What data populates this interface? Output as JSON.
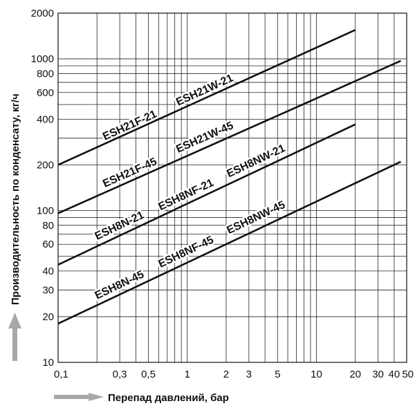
{
  "chart_data": {
    "type": "line",
    "title": "",
    "xlabel": "Перепад давлений, бар",
    "ylabel": "Производительность по конденсату, кг/ч",
    "xscale": "log",
    "yscale": "log",
    "xlim": [
      0.1,
      50
    ],
    "ylim": [
      10,
      2000
    ],
    "grid": true,
    "legend": "none",
    "x_ticks": [
      {
        "value": 0.1,
        "label": "0,1"
      },
      {
        "value": 0.3,
        "label": "0,3"
      },
      {
        "value": 0.5,
        "label": "0,5"
      },
      {
        "value": 1,
        "label": "1"
      },
      {
        "value": 2,
        "label": "2"
      },
      {
        "value": 3,
        "label": "3"
      },
      {
        "value": 5,
        "label": "5"
      },
      {
        "value": 10,
        "label": "10"
      },
      {
        "value": 20,
        "label": "20"
      },
      {
        "value": 30,
        "label": "30"
      },
      {
        "value": 40,
        "label": "40"
      },
      {
        "value": 50,
        "label": "50"
      }
    ],
    "y_ticks": [
      {
        "value": 10,
        "label": "10"
      },
      {
        "value": 20,
        "label": "20"
      },
      {
        "value": 30,
        "label": "30"
      },
      {
        "value": 40,
        "label": "40"
      },
      {
        "value": 60,
        "label": "60"
      },
      {
        "value": 80,
        "label": "80"
      },
      {
        "value": 100,
        "label": "100"
      },
      {
        "value": 200,
        "label": "200"
      },
      {
        "value": 400,
        "label": "400"
      },
      {
        "value": 600,
        "label": "600"
      },
      {
        "value": 800,
        "label": "800"
      },
      {
        "value": 1000,
        "label": "1000"
      },
      {
        "value": 2000,
        "label": "2000"
      }
    ],
    "x_grid": [
      0.1,
      0.2,
      0.3,
      0.4,
      0.5,
      0.6,
      0.7,
      0.8,
      0.9,
      1,
      2,
      3,
      4,
      5,
      6,
      7,
      8,
      9,
      10,
      20,
      30,
      40,
      50
    ],
    "y_grid": [
      10,
      20,
      30,
      40,
      50,
      60,
      70,
      80,
      90,
      100,
      200,
      300,
      400,
      500,
      600,
      700,
      800,
      900,
      1000,
      2000
    ],
    "series": [
      {
        "x": [
          0.1,
          20
        ],
        "y": [
          200,
          1550
        ],
        "labels": [
          {
            "text": "ESH21F-21",
            "x": 0.23,
            "y": 290
          },
          {
            "text": "ESH21W-21",
            "x": 0.85,
            "y": 490
          }
        ]
      },
      {
        "x": [
          0.1,
          45
        ],
        "y": [
          96,
          970
        ],
        "labels": [
          {
            "text": "ESH21F-45",
            "x": 0.23,
            "y": 142
          },
          {
            "text": "ESH21W-45",
            "x": 0.85,
            "y": 240
          }
        ]
      },
      {
        "x": [
          0.1,
          20
        ],
        "y": [
          44,
          370
        ],
        "labels": [
          {
            "text": "ESH8N-21",
            "x": 0.2,
            "y": 64
          },
          {
            "text": "ESH8NF-21",
            "x": 0.62,
            "y": 100
          },
          {
            "text": "ESH8NW-21",
            "x": 2.1,
            "y": 165
          }
        ]
      },
      {
        "x": [
          0.1,
          45
        ],
        "y": [
          18,
          210
        ],
        "labels": [
          {
            "text": "ESH8N-45",
            "x": 0.2,
            "y": 26
          },
          {
            "text": "ESH8NF-45",
            "x": 0.62,
            "y": 42
          },
          {
            "text": "ESH8NW-45",
            "x": 2.1,
            "y": 70
          }
        ]
      }
    ]
  },
  "colors": {
    "arrow": "#a8a8a8",
    "line": "#111111",
    "background": "#ffffff"
  }
}
